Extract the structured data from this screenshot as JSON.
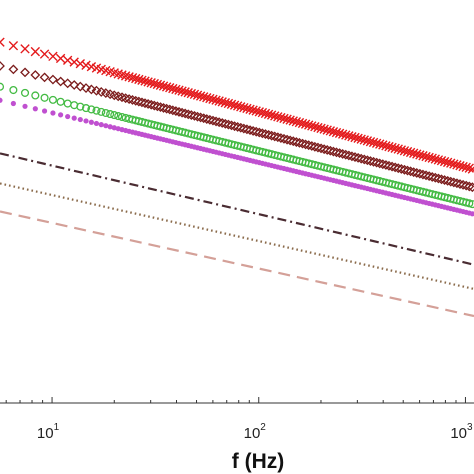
{
  "chart_data": {
    "type": "line",
    "x_scale": "log",
    "y_scale": "log",
    "xlabel": "f (Hz)",
    "xlim": [
      5.6,
      1100
    ],
    "x_ticks": [
      {
        "value": 10,
        "base": "10",
        "exp": "1"
      },
      {
        "value": 100,
        "base": "10",
        "exp": "2"
      },
      {
        "value": 1000,
        "base": "10",
        "exp": "3"
      }
    ],
    "ylim": [
      1e-05,
      1
    ],
    "grid": false,
    "legend": "none",
    "series": [
      {
        "color": "#e41a1c",
        "marker": "x",
        "line": "none",
        "x": [
          5.6,
          1100
        ],
        "y": [
          0.3,
          0.0079
        ]
      },
      {
        "color": "#7b1c1c",
        "marker": "diamond-open",
        "line": "none",
        "x": [
          5.6,
          1100
        ],
        "y": [
          0.152,
          0.0047
        ]
      },
      {
        "color": "#44bb44",
        "marker": "circle-open",
        "line": "none",
        "x": [
          5.6,
          1100
        ],
        "y": [
          0.084,
          0.0029
        ]
      },
      {
        "color": "#c050d0",
        "marker": "dot",
        "line": "none",
        "x": [
          5.6,
          1100
        ],
        "y": [
          0.057,
          0.0022
        ]
      },
      {
        "color": "#4a2c32",
        "marker": "none",
        "line": "dash-dot",
        "x": [
          5.6,
          1100
        ],
        "y": [
          0.0125,
          0.00052
        ]
      },
      {
        "color": "#8a6a4a",
        "marker": "none",
        "line": "dotted",
        "x": [
          5.6,
          1100
        ],
        "y": [
          0.0053,
          0.00026
        ]
      },
      {
        "color": "#d4a098",
        "marker": "none",
        "line": "dashed",
        "x": [
          5.6,
          1100
        ],
        "y": [
          0.00238,
          0.00012
        ]
      }
    ]
  }
}
